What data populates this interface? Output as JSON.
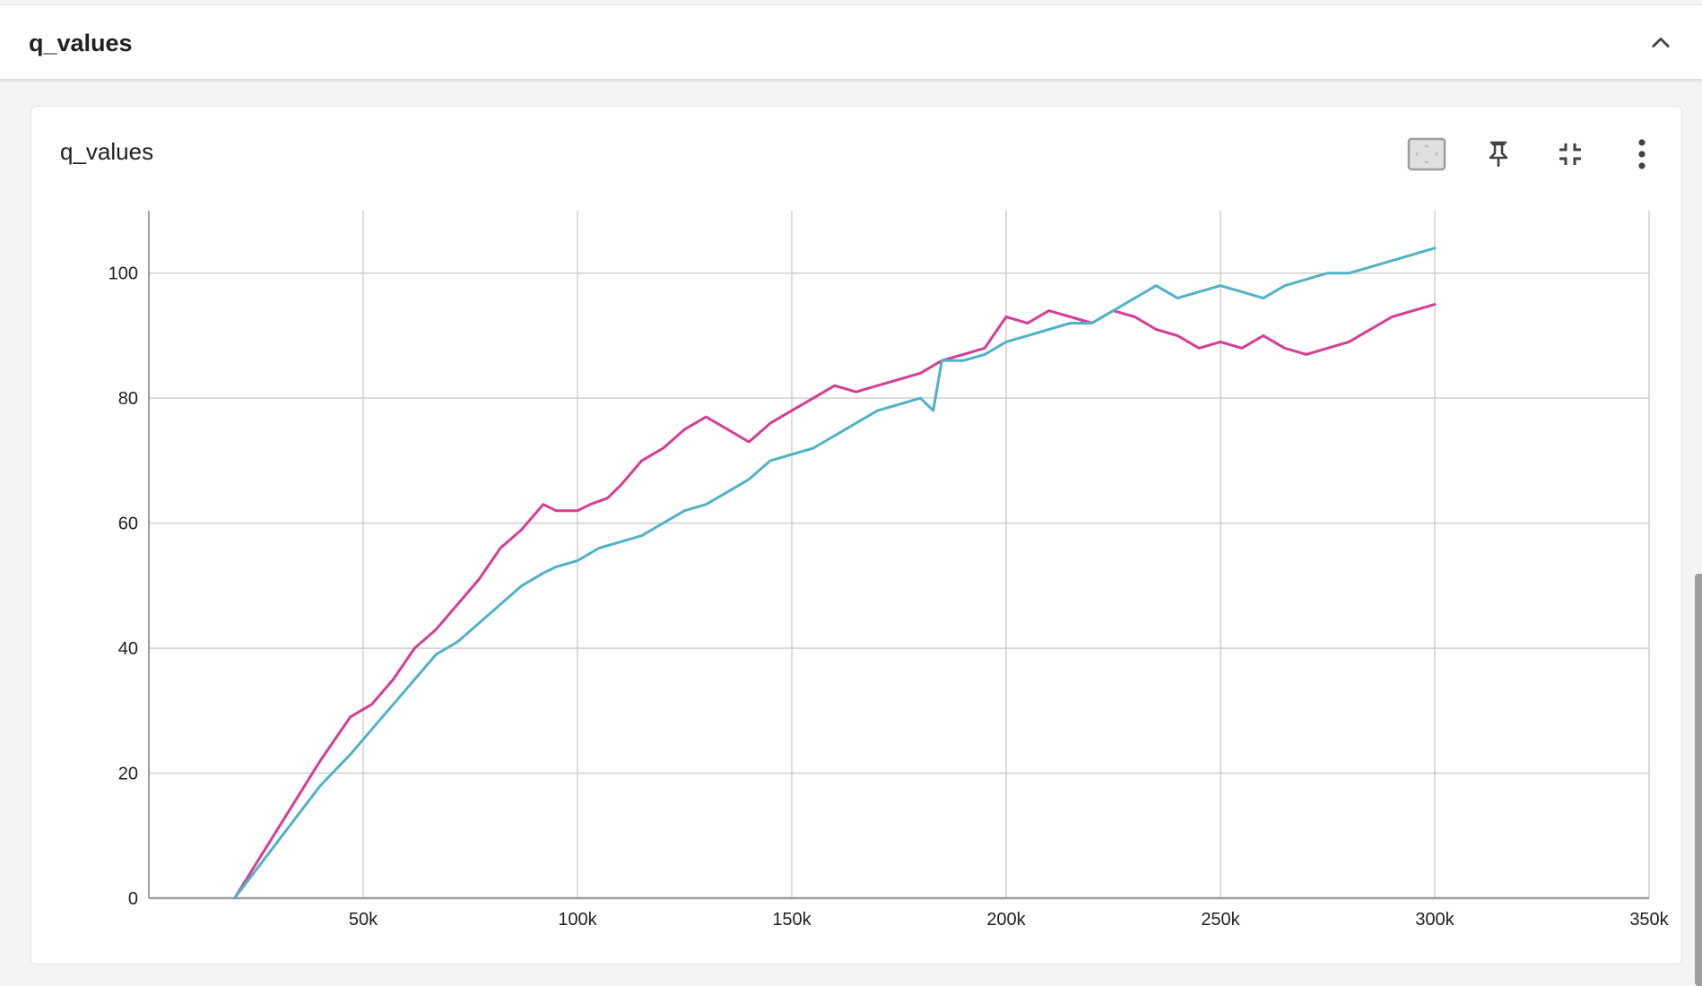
{
  "group": {
    "title": "q_values"
  },
  "card": {
    "title": "q_values"
  },
  "icons": {
    "collapse": "chevron-up-icon",
    "fit_domain": "fit-domain-icon",
    "pin": "pin-icon",
    "fullscreen_exit": "fullscreen-exit-icon",
    "more": "more-vert-icon"
  },
  "colors": {
    "series_1": "#d63d93",
    "series_2": "#4fb3c8"
  },
  "chart_data": {
    "type": "line",
    "title": "q_values",
    "xlim": [
      0,
      350000
    ],
    "ylim": [
      0,
      110
    ],
    "x_ticks": [
      50000,
      100000,
      150000,
      200000,
      250000,
      300000,
      350000
    ],
    "x_tick_labels": [
      "50k",
      "100k",
      "150k",
      "200k",
      "250k",
      "300k",
      "350k"
    ],
    "y_ticks": [
      0,
      20,
      40,
      60,
      80,
      100
    ],
    "y_tick_labels": [
      "0",
      "20",
      "40",
      "60",
      "80",
      "100"
    ],
    "grid": true,
    "series": [
      {
        "color": "#d63d93",
        "x": [
          20000,
          30000,
          40000,
          47000,
          52000,
          57000,
          62000,
          67000,
          72000,
          77000,
          82000,
          87000,
          92000,
          95000,
          100000,
          103000,
          107000,
          110000,
          115000,
          120000,
          125000,
          130000,
          135000,
          140000,
          145000,
          150000,
          155000,
          160000,
          165000,
          170000,
          175000,
          180000,
          185000,
          190000,
          195000,
          200000,
          205000,
          210000,
          215000,
          220000,
          225000,
          230000,
          235000,
          240000,
          245000,
          250000,
          255000,
          260000,
          265000,
          270000,
          275000,
          280000,
          285000,
          290000,
          295000,
          300000
        ],
        "values": [
          0,
          11,
          22,
          29,
          31,
          35,
          40,
          43,
          47,
          51,
          56,
          59,
          63,
          62,
          62,
          63,
          64,
          66,
          70,
          72,
          75,
          77,
          75,
          73,
          76,
          78,
          80,
          82,
          81,
          82,
          83,
          84,
          86,
          87,
          88,
          93,
          92,
          94,
          93,
          92,
          94,
          93,
          91,
          90,
          88,
          89,
          88,
          90,
          88,
          87,
          88,
          89,
          91,
          93,
          94,
          95
        ]
      },
      {
        "color": "#4fb3c8",
        "x": [
          20000,
          30000,
          40000,
          47000,
          52000,
          57000,
          62000,
          67000,
          72000,
          77000,
          82000,
          87000,
          92000,
          95000,
          100000,
          105000,
          110000,
          115000,
          120000,
          125000,
          130000,
          135000,
          140000,
          145000,
          150000,
          155000,
          160000,
          165000,
          170000,
          175000,
          180000,
          183000,
          185000,
          190000,
          195000,
          200000,
          205000,
          210000,
          215000,
          220000,
          225000,
          230000,
          235000,
          240000,
          245000,
          250000,
          255000,
          260000,
          265000,
          270000,
          275000,
          280000,
          285000,
          290000,
          295000,
          300000
        ],
        "values": [
          0,
          9,
          18,
          23,
          27,
          31,
          35,
          39,
          41,
          44,
          47,
          50,
          52,
          53,
          54,
          56,
          57,
          58,
          60,
          62,
          63,
          65,
          67,
          70,
          71,
          72,
          74,
          76,
          78,
          79,
          80,
          78,
          86,
          86,
          87,
          89,
          90,
          91,
          92,
          92,
          94,
          96,
          98,
          96,
          97,
          98,
          97,
          96,
          98,
          99,
          100,
          100,
          101,
          102,
          103,
          104
        ]
      }
    ]
  }
}
